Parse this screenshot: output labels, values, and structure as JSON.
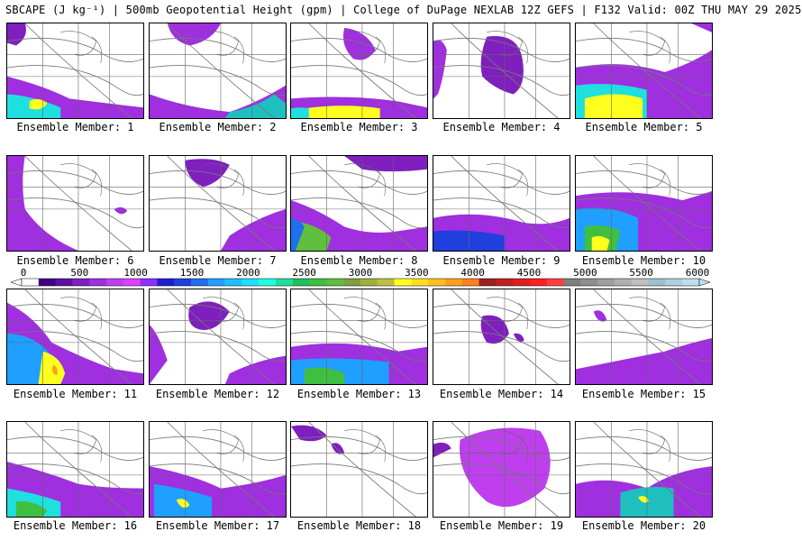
{
  "title": "SBCAPE (J kg⁻¹) | 500mb Geopotential Height (gpm) | College of DuPage NEXLAB 12Z GEFS | F132 Valid: 00Z THU MAY 29 2025",
  "panels": [
    {
      "label": "Ensemble Member: 1"
    },
    {
      "label": "Ensemble Member: 2"
    },
    {
      "label": "Ensemble Member: 3"
    },
    {
      "label": "Ensemble Member: 4"
    },
    {
      "label": "Ensemble Member: 5"
    },
    {
      "label": "Ensemble Member: 6"
    },
    {
      "label": "Ensemble Member: 7"
    },
    {
      "label": "Ensemble Member: 8"
    },
    {
      "label": "Ensemble Member: 9"
    },
    {
      "label": "Ensemble Member: 10"
    },
    {
      "label": "Ensemble Member: 11"
    },
    {
      "label": "Ensemble Member: 12"
    },
    {
      "label": "Ensemble Member: 13"
    },
    {
      "label": "Ensemble Member: 14"
    },
    {
      "label": "Ensemble Member: 15"
    },
    {
      "label": "Ensemble Member: 16"
    },
    {
      "label": "Ensemble Member: 17"
    },
    {
      "label": "Ensemble Member: 18"
    },
    {
      "label": "Ensemble Member: 19"
    },
    {
      "label": "Ensemble Member: 20"
    }
  ],
  "colorbar": {
    "labels": [
      "0",
      "500",
      "1000",
      "1500",
      "2000",
      "2500",
      "3000",
      "3500",
      "4000",
      "4500",
      "5000",
      "5500",
      "6000"
    ],
    "colors": [
      "#ffffff",
      "#3f007f",
      "#5f0f9f",
      "#7f1fbf",
      "#9f2fdf",
      "#bf3fef",
      "#df3fff",
      "#8f2fff",
      "#1f1fcf",
      "#1f3fdf",
      "#1f6fef",
      "#1f9fff",
      "#1fbfff",
      "#1fdfff",
      "#1fffdf",
      "#1fdf9f",
      "#1fbf5f",
      "#3fbf3f",
      "#5fbf3f",
      "#7f9f3f",
      "#9faf3f",
      "#bfbf3f",
      "#ffff1f",
      "#ffdf1f",
      "#ffbf1f",
      "#ff9f1f",
      "#ff7f1f",
      "#9f1f1f",
      "#bf1f1f",
      "#df1f1f",
      "#ff1f1f",
      "#ff3f3f",
      "#7f7f7f",
      "#8f8f8f",
      "#9f9f9f",
      "#afafaf",
      "#bfbfbf",
      "#9fbfcf",
      "#afcfdf",
      "#bfdfef"
    ]
  }
}
